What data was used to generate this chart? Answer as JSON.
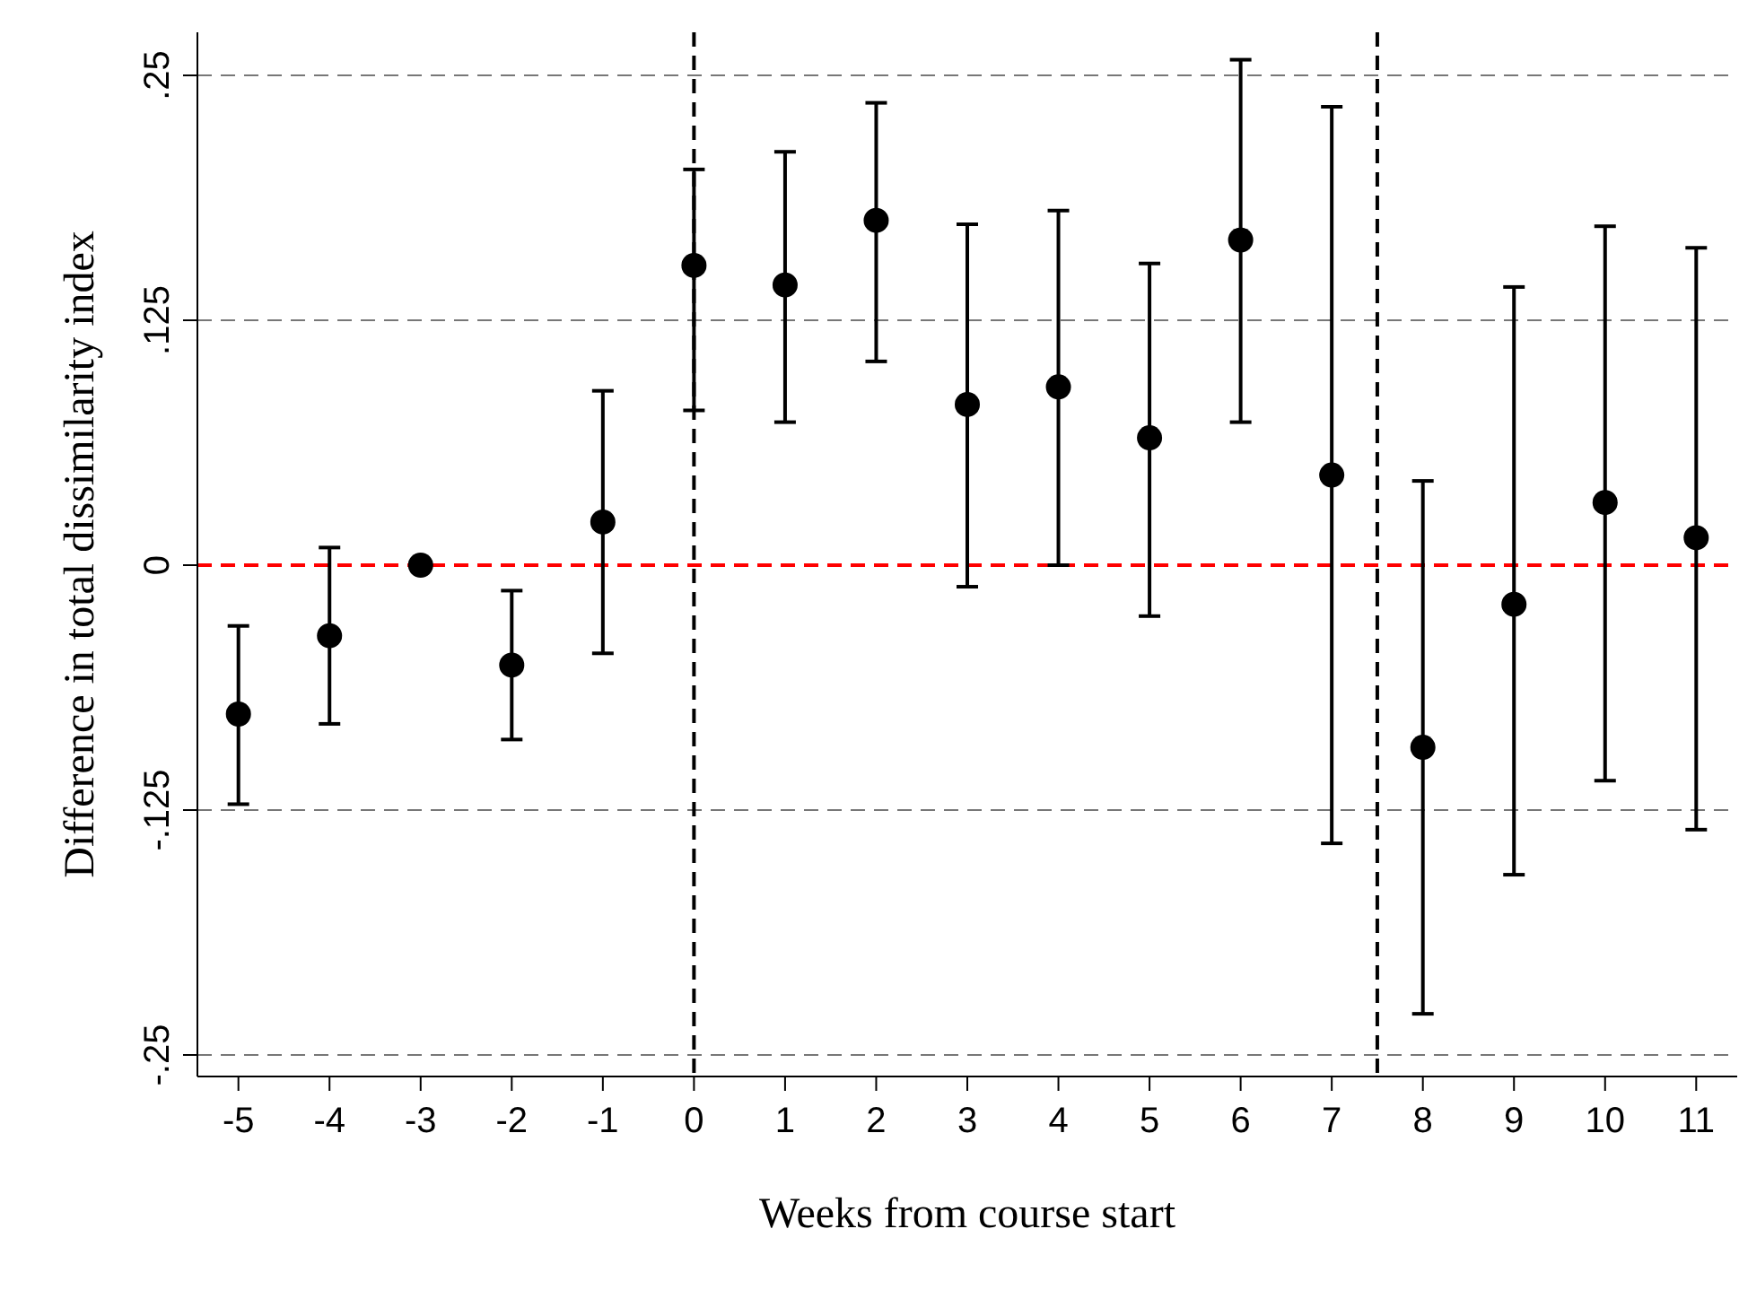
{
  "chart_data": {
    "type": "scatter",
    "xlabel": "Weeks from course start",
    "ylabel": "Difference in total dissimilarity index",
    "x": [
      -5,
      -4,
      -3,
      -2,
      -1,
      0,
      1,
      2,
      3,
      4,
      5,
      6,
      7,
      8,
      9,
      10,
      11
    ],
    "values": [
      -0.076,
      -0.036,
      0,
      -0.051,
      0.022,
      0.153,
      0.143,
      0.176,
      0.082,
      0.091,
      0.065,
      0.166,
      0.046,
      -0.093,
      -0.02,
      0.032,
      0.014
    ],
    "errors": [
      [
        -0.122,
        -0.031
      ],
      [
        -0.081,
        0.009
      ],
      null,
      [
        -0.089,
        -0.013
      ],
      [
        -0.045,
        0.089
      ],
      [
        0.079,
        0.202
      ],
      [
        0.073,
        0.211
      ],
      [
        0.104,
        0.236
      ],
      [
        -0.011,
        0.174
      ],
      [
        0,
        0.181
      ],
      [
        -0.026,
        0.154
      ],
      [
        0.073,
        0.258
      ],
      [
        -0.142,
        0.234
      ],
      [
        -0.229,
        0.043
      ],
      [
        -0.158,
        0.142
      ],
      [
        -0.11,
        0.173
      ],
      [
        -0.135,
        0.162
      ]
    ],
    "color": "#000000",
    "marker": "circle",
    "xlim": [
      -5.45,
      11.45
    ],
    "xticks": [
      -5,
      -4,
      -3,
      -2,
      -1,
      0,
      1,
      2,
      3,
      4,
      5,
      6,
      7,
      8,
      9,
      10,
      11
    ],
    "ylim": [
      -0.261,
      0.272
    ],
    "yticks": [
      {
        "value": -0.25,
        "label": "-.25"
      },
      {
        "value": -0.125,
        "label": "-.125"
      },
      0,
      {
        "value": 0.125,
        "label": ".125"
      },
      {
        "value": 0.25,
        "label": ".25"
      }
    ],
    "grid": "y",
    "ref_lines": [
      {
        "axis": "y",
        "value": 0,
        "color": "#ff0000",
        "line_style": "dashed"
      },
      {
        "axis": "x",
        "value": 0,
        "color": "#000000",
        "line_style": "dashed"
      },
      {
        "axis": "x",
        "value": 7.5,
        "color": "#000000",
        "line_style": "dashed"
      }
    ]
  }
}
